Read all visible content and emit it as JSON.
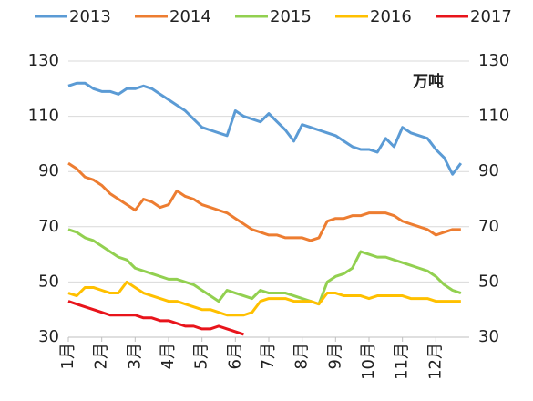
{
  "chart_data": {
    "type": "line",
    "annotation": "万吨",
    "categories": [
      "1月",
      null,
      null,
      null,
      "2月",
      null,
      null,
      null,
      "3月",
      null,
      null,
      null,
      "4月",
      null,
      null,
      null,
      "5月",
      null,
      null,
      null,
      "6月",
      null,
      null,
      null,
      "7月",
      null,
      null,
      null,
      "8月",
      null,
      null,
      null,
      "9月",
      null,
      null,
      null,
      "10月",
      null,
      null,
      null,
      "11月",
      null,
      null,
      null,
      "12月",
      null,
      null,
      null
    ],
    "series": [
      {
        "name": "2013",
        "color": "#5b9bd5",
        "values": [
          121,
          122,
          122,
          120,
          119,
          119,
          118,
          120,
          120,
          121,
          120,
          118,
          116,
          114,
          112,
          109,
          106,
          105,
          104,
          103,
          112,
          110,
          109,
          108,
          111,
          108,
          105,
          101,
          107,
          106,
          105,
          104,
          103,
          101,
          99,
          98,
          98,
          97,
          102,
          99,
          106,
          104,
          103,
          102,
          98,
          95,
          89,
          93
        ]
      },
      {
        "name": "2014",
        "color": "#ed7d31",
        "values": [
          93,
          91,
          88,
          87,
          85,
          82,
          80,
          78,
          76,
          80,
          79,
          77,
          78,
          83,
          81,
          80,
          78,
          77,
          76,
          75,
          73,
          71,
          69,
          68,
          67,
          67,
          66,
          66,
          66,
          65,
          66,
          72,
          73,
          73,
          74,
          74,
          75,
          75,
          75,
          74,
          72,
          71,
          70,
          69,
          67,
          68,
          69,
          69
        ]
      },
      {
        "name": "2015",
        "color": "#92d050",
        "values": [
          69,
          68,
          66,
          65,
          63,
          61,
          59,
          58,
          55,
          54,
          53,
          52,
          51,
          51,
          50,
          49,
          47,
          45,
          43,
          47,
          46,
          45,
          44,
          47,
          46,
          46,
          46,
          45,
          44,
          43,
          42,
          50,
          52,
          53,
          55,
          61,
          60,
          59,
          59,
          58,
          57,
          56,
          55,
          54,
          52,
          49,
          47,
          46
        ]
      },
      {
        "name": "2016",
        "color": "#ffc000",
        "values": [
          46,
          45,
          48,
          48,
          47,
          46,
          46,
          50,
          48,
          46,
          45,
          44,
          43,
          43,
          42,
          41,
          40,
          40,
          39,
          38,
          38,
          38,
          39,
          43,
          44,
          44,
          44,
          43,
          43,
          43,
          42,
          46,
          46,
          45,
          45,
          45,
          44,
          45,
          45,
          45,
          45,
          44,
          44,
          44,
          43,
          43,
          43,
          43
        ]
      },
      {
        "name": "2017",
        "color": "#e8141b",
        "values": [
          43,
          42,
          41,
          40,
          39,
          38,
          38,
          38,
          38,
          37,
          37,
          36,
          36,
          35,
          34,
          34,
          33,
          33,
          34,
          33,
          32,
          31,
          null,
          null,
          null,
          null,
          null,
          null,
          null,
          null,
          null,
          null,
          null,
          null,
          null,
          null,
          null,
          null,
          null,
          null,
          null,
          null,
          null,
          null,
          null,
          null,
          null,
          null
        ]
      }
    ],
    "ylim": [
      30,
      130
    ],
    "yticks": [
      30,
      50,
      70,
      90,
      110,
      130
    ],
    "y2lim": [
      30,
      130
    ],
    "y2ticks": [
      30,
      50,
      70,
      90,
      110,
      130
    ],
    "grid": true
  }
}
